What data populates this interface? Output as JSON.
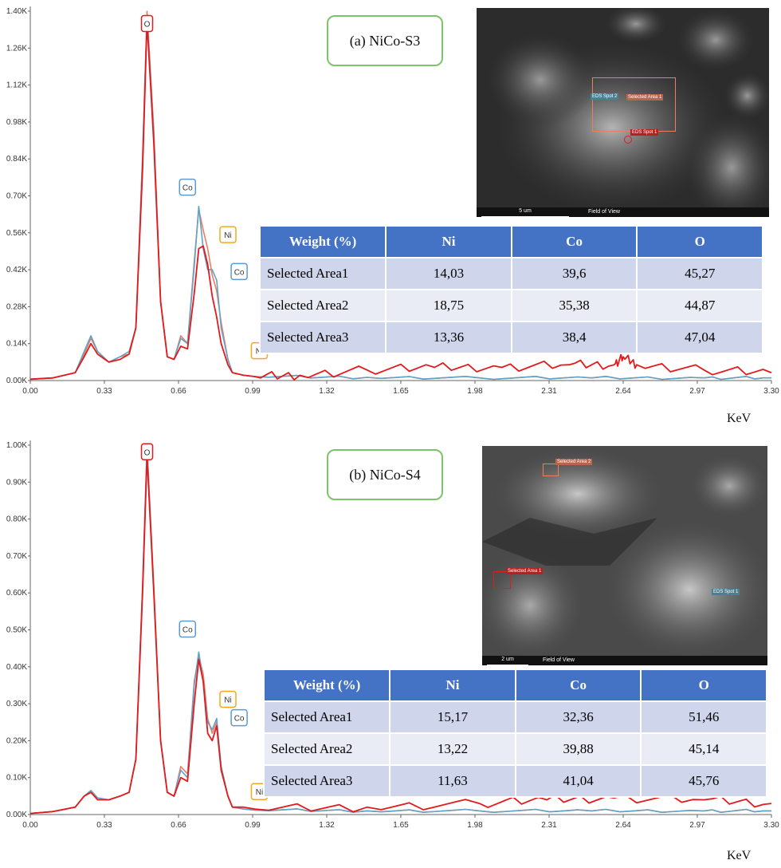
{
  "chart_data": [
    {
      "type": "line",
      "title": "(a) NiCo-S3",
      "xlabel": "KeV",
      "ylabel": "",
      "x_ticks": [
        "0.00",
        "0.33",
        "0.66",
        "0.99",
        "1.32",
        "1.65",
        "1.98",
        "2.31",
        "2.64",
        "2.97",
        "3.30"
      ],
      "y_ticks": [
        "0.00K",
        "0.14K",
        "0.28K",
        "0.42K",
        "0.56K",
        "0.70K",
        "0.84K",
        "0.98K",
        "1.12K",
        "1.26K",
        "1.40K"
      ],
      "xlim": [
        0,
        3.3
      ],
      "ylim": [
        0,
        1.4
      ],
      "y_units": "K counts",
      "series": [
        {
          "color": "#e31a1c",
          "x": [
            0,
            0.1,
            0.2,
            0.24,
            0.27,
            0.3,
            0.35,
            0.4,
            0.44,
            0.47,
            0.5,
            0.52,
            0.55,
            0.58,
            0.61,
            0.64,
            0.67,
            0.7,
            0.73,
            0.75,
            0.77,
            0.79,
            0.81,
            0.83,
            0.85,
            0.88,
            0.9,
            0.95,
            1.0,
            1.2,
            1.5,
            1.8,
            2.1,
            2.4,
            2.6,
            2.64,
            2.7,
            3.0,
            3.3
          ],
          "y": [
            0.005,
            0.01,
            0.03,
            0.09,
            0.14,
            0.1,
            0.07,
            0.08,
            0.1,
            0.2,
            0.8,
            1.36,
            0.9,
            0.3,
            0.09,
            0.08,
            0.13,
            0.12,
            0.33,
            0.5,
            0.51,
            0.44,
            0.32,
            0.24,
            0.14,
            0.06,
            0.03,
            0.02,
            0.015,
            0.02,
            0.04,
            0.05,
            0.05,
            0.06,
            0.06,
            0.09,
            0.06,
            0.04,
            0.03
          ]
        },
        {
          "color": "#ed7d62",
          "x": [
            0,
            0.1,
            0.2,
            0.24,
            0.27,
            0.3,
            0.35,
            0.4,
            0.44,
            0.47,
            0.5,
            0.52,
            0.55,
            0.58,
            0.61,
            0.64,
            0.67,
            0.7,
            0.73,
            0.75,
            0.77,
            0.79,
            0.81,
            0.83,
            0.85,
            0.88,
            0.9,
            0.95,
            1.0,
            1.5,
            2.0,
            2.5,
            3.0,
            3.3
          ],
          "y": [
            0.005,
            0.01,
            0.03,
            0.1,
            0.16,
            0.11,
            0.07,
            0.09,
            0.1,
            0.2,
            0.85,
            1.4,
            0.95,
            0.3,
            0.09,
            0.08,
            0.17,
            0.14,
            0.45,
            0.65,
            0.57,
            0.5,
            0.4,
            0.34,
            0.22,
            0.08,
            0.03,
            0.02,
            0.015,
            0.012,
            0.01,
            0.01,
            0.01,
            0.01
          ]
        },
        {
          "color": "#5fa3c8",
          "x": [
            0,
            0.1,
            0.2,
            0.24,
            0.27,
            0.3,
            0.35,
            0.4,
            0.44,
            0.47,
            0.5,
            0.52,
            0.55,
            0.58,
            0.61,
            0.64,
            0.67,
            0.7,
            0.73,
            0.75,
            0.77,
            0.79,
            0.81,
            0.83,
            0.85,
            0.88,
            0.9,
            0.95,
            1.0,
            1.5,
            2.0,
            2.5,
            3.0,
            3.3
          ],
          "y": [
            0.005,
            0.01,
            0.03,
            0.11,
            0.17,
            0.11,
            0.07,
            0.09,
            0.11,
            0.2,
            0.85,
            1.38,
            0.93,
            0.3,
            0.09,
            0.08,
            0.16,
            0.14,
            0.43,
            0.66,
            0.5,
            0.42,
            0.42,
            0.38,
            0.2,
            0.08,
            0.03,
            0.02,
            0.015,
            0.012,
            0.01,
            0.01,
            0.01,
            0.01
          ]
        }
      ],
      "peak_labels": [
        {
          "text": "O",
          "color": "#e31a1c",
          "x": 0.52,
          "y": 1.35
        },
        {
          "text": "Co",
          "color": "#5b9bd5",
          "x": 0.7,
          "y": 0.73
        },
        {
          "text": "Ni",
          "color": "#f5a623",
          "x": 0.88,
          "y": 0.55
        },
        {
          "text": "Co",
          "color": "#5b9bd5",
          "x": 0.93,
          "y": 0.41
        },
        {
          "text": "Ni",
          "color": "#f5a623",
          "x": 1.02,
          "y": 0.11
        }
      ],
      "table": {
        "headers": [
          "Weight (%)",
          "Ni",
          "Co",
          "O"
        ],
        "rows": [
          [
            "Selected Area1",
            "14,03",
            "39,6",
            "45,27"
          ],
          [
            "Selected Area2",
            "18,75",
            "35,38",
            "44,87"
          ],
          [
            "Selected Area3",
            "13,36",
            "38,4",
            "47,04"
          ]
        ]
      },
      "sem_image": {
        "scale_bar": "5 um",
        "field_label": "Field of View",
        "markers": [
          {
            "text": "EDS Spot 2",
            "color": "#5fa3c8"
          },
          {
            "text": "Selected Area 1",
            "color": "#ed7d62"
          },
          {
            "text": "EDS Spot 1",
            "color": "#e31a1c"
          }
        ]
      }
    },
    {
      "type": "line",
      "title": "(b) NiCo-S4",
      "xlabel": "KeV",
      "ylabel": "",
      "x_ticks": [
        "0.00",
        "0.33",
        "0.66",
        "0.99",
        "1.32",
        "1.65",
        "1.98",
        "2.31",
        "2.64",
        "2.97",
        "3.30"
      ],
      "y_ticks": [
        "0.00K",
        "0.10K",
        "0.20K",
        "0.30K",
        "0.40K",
        "0.50K",
        "0.60K",
        "0.70K",
        "0.80K",
        "0.90K",
        "1.00K"
      ],
      "xlim": [
        0,
        3.3
      ],
      "ylim": [
        0,
        1.0
      ],
      "y_units": "K counts",
      "series": [
        {
          "color": "#e31a1c",
          "x": [
            0,
            0.1,
            0.2,
            0.24,
            0.27,
            0.3,
            0.35,
            0.4,
            0.44,
            0.47,
            0.5,
            0.52,
            0.55,
            0.58,
            0.61,
            0.64,
            0.67,
            0.7,
            0.73,
            0.75,
            0.77,
            0.79,
            0.81,
            0.83,
            0.85,
            0.88,
            0.9,
            0.95,
            1.0,
            1.5,
            2.0,
            2.3,
            2.6,
            3.0,
            3.3
          ],
          "y": [
            0.003,
            0.008,
            0.02,
            0.05,
            0.06,
            0.04,
            0.04,
            0.05,
            0.06,
            0.15,
            0.6,
            0.97,
            0.6,
            0.2,
            0.06,
            0.05,
            0.1,
            0.09,
            0.3,
            0.42,
            0.36,
            0.22,
            0.2,
            0.24,
            0.12,
            0.05,
            0.02,
            0.02,
            0.015,
            0.02,
            0.03,
            0.04,
            0.045,
            0.04,
            0.03
          ]
        },
        {
          "color": "#ed7d62",
          "x": [
            0,
            0.1,
            0.2,
            0.24,
            0.27,
            0.3,
            0.35,
            0.4,
            0.44,
            0.47,
            0.5,
            0.52,
            0.55,
            0.58,
            0.61,
            0.64,
            0.67,
            0.7,
            0.73,
            0.75,
            0.77,
            0.79,
            0.81,
            0.83,
            0.85,
            0.88,
            0.9,
            0.95,
            1.0,
            1.5,
            2.0,
            2.5,
            3.0,
            3.3
          ],
          "y": [
            0.003,
            0.008,
            0.02,
            0.05,
            0.065,
            0.045,
            0.04,
            0.05,
            0.06,
            0.15,
            0.62,
            1.0,
            0.62,
            0.2,
            0.06,
            0.05,
            0.13,
            0.11,
            0.36,
            0.43,
            0.38,
            0.26,
            0.22,
            0.25,
            0.13,
            0.05,
            0.02,
            0.015,
            0.012,
            0.01,
            0.01,
            0.01,
            0.01,
            0.01
          ]
        },
        {
          "color": "#5fa3c8",
          "x": [
            0,
            0.1,
            0.2,
            0.24,
            0.27,
            0.3,
            0.35,
            0.4,
            0.44,
            0.47,
            0.5,
            0.52,
            0.55,
            0.58,
            0.61,
            0.64,
            0.67,
            0.7,
            0.73,
            0.75,
            0.77,
            0.79,
            0.81,
            0.83,
            0.85,
            0.88,
            0.9,
            0.95,
            1.0,
            1.5,
            2.0,
            2.5,
            3.0,
            3.3
          ],
          "y": [
            0.003,
            0.008,
            0.02,
            0.05,
            0.065,
            0.045,
            0.04,
            0.05,
            0.06,
            0.15,
            0.62,
            0.99,
            0.61,
            0.2,
            0.06,
            0.05,
            0.12,
            0.1,
            0.35,
            0.44,
            0.36,
            0.25,
            0.23,
            0.26,
            0.13,
            0.05,
            0.02,
            0.015,
            0.012,
            0.01,
            0.01,
            0.01,
            0.01,
            0.01
          ]
        }
      ],
      "peak_labels": [
        {
          "text": "O",
          "color": "#e31a1c",
          "x": 0.52,
          "y": 0.98
        },
        {
          "text": "Co",
          "color": "#5b9bd5",
          "x": 0.7,
          "y": 0.5
        },
        {
          "text": "Ni",
          "color": "#f5a623",
          "x": 0.88,
          "y": 0.31
        },
        {
          "text": "Co",
          "color": "#5b9bd5",
          "x": 0.93,
          "y": 0.26
        },
        {
          "text": "Ni",
          "color": "#f5a623",
          "x": 1.02,
          "y": 0.06
        }
      ],
      "table": {
        "headers": [
          "Weight (%)",
          "Ni",
          "Co",
          "O"
        ],
        "rows": [
          [
            "Selected Area1",
            "15,17",
            "32,36",
            "51,46"
          ],
          [
            "Selected Area2",
            "13,22",
            "39,88",
            "45,14"
          ],
          [
            "Selected Area3",
            "11,63",
            "41,04",
            "45,76"
          ]
        ]
      },
      "sem_image": {
        "scale_bar": "2 um",
        "field_label": "Field of View",
        "markers": [
          {
            "text": "Selected Area 2",
            "color": "#ed7d62"
          },
          {
            "text": "Selected Area 1",
            "color": "#e31a1c"
          },
          {
            "text": "EDS Spot 1",
            "color": "#5fa3c8"
          }
        ]
      }
    }
  ]
}
